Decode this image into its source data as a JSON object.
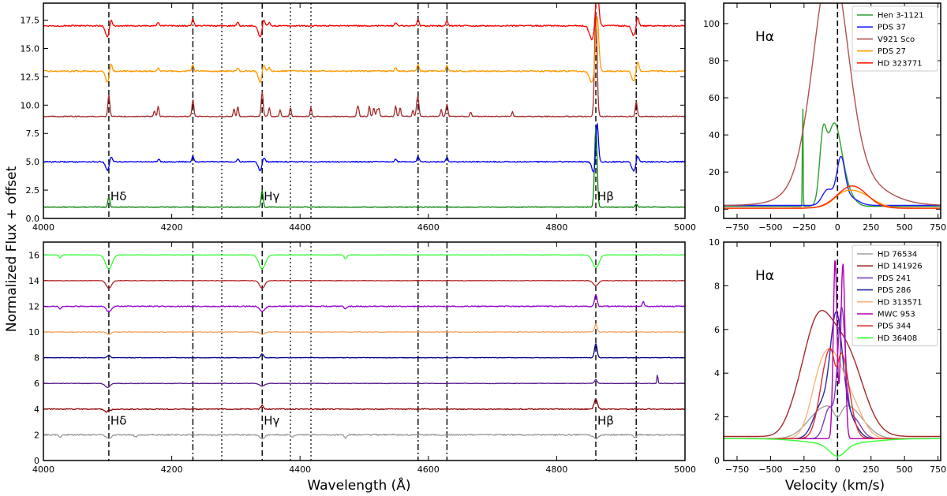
{
  "figure": {
    "ylabel": "Normalized Flux + offset",
    "xlabel_spec": "Wavelength (Å)",
    "xlabel_vel": "Velocity (km/s)"
  },
  "chart_data": [
    {
      "type": "line",
      "panel": "top-left",
      "xlim": [
        4000,
        5000
      ],
      "ylim": [
        0,
        19
      ],
      "xticks": [
        4000,
        4200,
        4400,
        4600,
        4800,
        5000
      ],
      "yticks": [
        "0.0",
        "2.5",
        "5.0",
        "7.5",
        "10.0",
        "12.5",
        "15.0",
        "17.5"
      ],
      "grid": false,
      "line_markers": {
        "dashed": [
          4102,
          4341,
          4861
        ],
        "dashdot": [
          4233,
          4584,
          4629,
          4924
        ],
        "dotted": [
          4278,
          4385,
          4417
        ]
      },
      "annotations": [
        {
          "text": "Hδ",
          "x": 4102,
          "y": 1.6
        },
        {
          "text": "Hγ",
          "x": 4341,
          "y": 1.6
        },
        {
          "text": "Hβ",
          "x": 4861,
          "y": 1.6
        }
      ],
      "series": [
        {
          "color": "#008000",
          "offset": 1,
          "noise": 0.03,
          "features": [
            [
              4102,
              0.9,
              1.5
            ],
            [
              4341,
              1.5,
              1.5
            ],
            [
              4861,
              7.0,
              2.0
            ],
            [
              4924,
              0.3,
              1.5
            ]
          ]
        },
        {
          "color": "#0000ff",
          "offset": 5,
          "noise": 0.05,
          "features": [
            [
              4100,
              -0.8,
              3
            ],
            [
              4105,
              0.6,
              2
            ],
            [
              4338,
              -0.8,
              3
            ],
            [
              4343,
              0.5,
              2
            ],
            [
              4858,
              -1.0,
              3
            ],
            [
              4863,
              3.6,
              2
            ],
            [
              4920,
              -0.8,
              3
            ],
            [
              4926,
              0.6,
              2
            ],
            [
              4233,
              0.5,
              1.5
            ],
            [
              4584,
              0.5,
              1.5
            ],
            [
              4629,
              0.4,
              1.5
            ],
            [
              4180,
              0.25,
              1.5
            ],
            [
              4303,
              0.25,
              1.5
            ],
            [
              4549,
              0.25,
              1.5
            ]
          ]
        },
        {
          "color": "#a52a2a",
          "offset": 9,
          "noise": 0.04,
          "features": [
            [
              4102,
              1.9,
              1.5
            ],
            [
              4341,
              2.2,
              1.5
            ],
            [
              4861,
              9.0,
              2.0
            ],
            [
              4924,
              1.3,
              1.5
            ],
            [
              4233,
              1.2,
              1.5
            ],
            [
              4584,
              1.5,
              1.5
            ],
            [
              4629,
              1.1,
              1.5
            ],
            [
              4179,
              0.9,
              1.2
            ],
            [
              4173,
              0.5,
              1.2
            ],
            [
              4297,
              0.7,
              1.2
            ],
            [
              4303,
              0.9,
              1.2
            ],
            [
              4352,
              0.8,
              1.2
            ],
            [
              4369,
              0.6,
              1.2
            ],
            [
              4385,
              0.8,
              1.2
            ],
            [
              4417,
              0.8,
              1.2
            ],
            [
              4489,
              0.6,
              1.2
            ],
            [
              4491,
              0.7,
              1.2
            ],
            [
              4508,
              0.9,
              1.2
            ],
            [
              4515,
              0.8,
              1.2
            ],
            [
              4520,
              0.6,
              1.2
            ],
            [
              4523,
              0.7,
              1.2
            ],
            [
              4549,
              0.9,
              1.2
            ],
            [
              4556,
              0.8,
              1.2
            ],
            [
              4576,
              0.6,
              1.2
            ],
            [
              4582,
              0.7,
              1.2
            ],
            [
              4620,
              0.6,
              1.2
            ],
            [
              4666,
              0.4,
              1.2
            ],
            [
              4731,
              0.4,
              1.2
            ],
            [
              4233,
              0.3,
              1.2
            ]
          ]
        },
        {
          "color": "#ff9900",
          "offset": 13,
          "noise": 0.06,
          "features": [
            [
              4100,
              -1.0,
              3
            ],
            [
              4105,
              0.8,
              2
            ],
            [
              4338,
              -1.0,
              3
            ],
            [
              4343,
              0.8,
              2
            ],
            [
              4855,
              -1.0,
              4
            ],
            [
              4863,
              5.0,
              2.5
            ],
            [
              4920,
              -0.9,
              3
            ],
            [
              4926,
              0.9,
              2
            ],
            [
              4233,
              0.6,
              1.5
            ],
            [
              4584,
              0.6,
              1.5
            ],
            [
              4629,
              0.5,
              1.5
            ],
            [
              4179,
              0.3,
              1.5
            ],
            [
              4303,
              0.3,
              1.5
            ],
            [
              4352,
              0.3,
              1.5
            ],
            [
              4549,
              0.3,
              1.5
            ]
          ]
        },
        {
          "color": "#ff0000",
          "offset": 17,
          "noise": 0.06,
          "features": [
            [
              4100,
              -1.0,
              3
            ],
            [
              4105,
              0.7,
              2
            ],
            [
              4338,
              -1.0,
              3
            ],
            [
              4343,
              0.7,
              2
            ],
            [
              4855,
              -1.2,
              4
            ],
            [
              4863,
              3.5,
              2.5
            ],
            [
              4920,
              -0.9,
              3
            ],
            [
              4926,
              0.9,
              2
            ],
            [
              4233,
              0.6,
              1.5
            ],
            [
              4584,
              0.6,
              1.5
            ],
            [
              4629,
              0.5,
              1.5
            ],
            [
              4179,
              0.3,
              1.5
            ],
            [
              4303,
              0.3,
              1.5
            ],
            [
              4352,
              0.3,
              1.5
            ],
            [
              4549,
              0.3,
              1.5
            ]
          ]
        }
      ]
    },
    {
      "type": "line",
      "panel": "top-right",
      "title": "Hα",
      "xlim": [
        -850,
        770
      ],
      "ylim": [
        -5,
        111
      ],
      "xticks": [
        -750,
        -500,
        -250,
        0,
        250,
        500,
        750
      ],
      "yticks": [
        0,
        20,
        40,
        60,
        80,
        100
      ],
      "grid": false,
      "legend": "top-right",
      "marker_x": 0,
      "series": [
        {
          "name": "Hen 3-1121",
          "color": "#2ca02c",
          "base": 1.5,
          "components": [
            [
              -30,
              40,
              52
            ],
            [
              -110,
              30,
              25
            ],
            [
              45,
              10,
              60
            ],
            [
              -260,
              60,
              2.5
            ]
          ]
        },
        {
          "name": "PDS 37",
          "color": "#1a1aff",
          "base": 2,
          "components": [
            [
              25,
              22,
              30
            ],
            [
              -75,
              8,
              40
            ],
            [
              70,
              5,
              70
            ]
          ]
        },
        {
          "name": "V921 Sco",
          "color": "#b05050",
          "base": 2,
          "components": [
            [
              -40,
              95,
              120
            ],
            [
              -120,
              20,
              130
            ],
            [
              20,
              20,
              250
            ]
          ]
        },
        {
          "name": "PDS 27",
          "color": "#ff9900",
          "base": 0.5,
          "components": [
            [
              130,
              9,
              120
            ],
            [
              30,
              2,
              60
            ]
          ]
        },
        {
          "name": "HD 323771",
          "color": "#ff2200",
          "base": 0.5,
          "components": [
            [
              110,
              12,
              110
            ]
          ]
        }
      ]
    },
    {
      "type": "line",
      "panel": "bottom-left",
      "xlim": [
        4000,
        5000
      ],
      "ylim": [
        0,
        17
      ],
      "xticks": [
        4000,
        4200,
        4400,
        4600,
        4800,
        5000
      ],
      "yticks": [
        0,
        2,
        4,
        6,
        8,
        10,
        12,
        14,
        16
      ],
      "grid": false,
      "line_markers": {
        "dashed": [
          4102,
          4341,
          4861
        ],
        "dashdot": [
          4233,
          4584,
          4629,
          4924
        ],
        "dotted": [
          4278,
          4385,
          4417
        ]
      },
      "annotations": [
        {
          "text": "Hδ",
          "x": 4102,
          "y": 2.8
        },
        {
          "text": "Hγ",
          "x": 4341,
          "y": 2.8
        },
        {
          "text": "Hβ",
          "x": 4861,
          "y": 2.8
        }
      ],
      "series": [
        {
          "color": "#999999",
          "offset": 2,
          "noise": 0.05,
          "features": [
            [
              4102,
              -0.3,
              4
            ],
            [
              4341,
              -0.3,
              4
            ],
            [
              4861,
              -0.3,
              4
            ],
            [
              4026,
              -0.2,
              2
            ],
            [
              4144,
              -0.15,
              2
            ],
            [
              4388,
              -0.2,
              2
            ],
            [
              4471,
              -0.25,
              2
            ],
            [
              4922,
              -0.2,
              2
            ]
          ]
        },
        {
          "color": "#8b0000",
          "offset": 4,
          "noise": 0.04,
          "features": [
            [
              4100,
              -0.3,
              4
            ],
            [
              4341,
              0.3,
              2
            ],
            [
              4861,
              0.8,
              2.5
            ],
            [
              4102,
              0.2,
              2
            ]
          ]
        },
        {
          "color": "#551a8b",
          "offset": 6,
          "noise": 0.02,
          "features": [
            [
              4100,
              -0.3,
              4
            ],
            [
              4341,
              -0.2,
              4
            ],
            [
              4861,
              0.3,
              2
            ],
            [
              4957,
              0.7,
              0.8
            ]
          ]
        },
        {
          "color": "#00008b",
          "offset": 8,
          "noise": 0.02,
          "features": [
            [
              4102,
              0.2,
              2
            ],
            [
              4341,
              0.3,
              2
            ],
            [
              4861,
              1.1,
              2
            ]
          ]
        },
        {
          "color": "#f4a460",
          "offset": 10,
          "noise": 0.03,
          "features": [
            [
              4102,
              -0.2,
              3
            ],
            [
              4341,
              -0.2,
              3
            ],
            [
              4861,
              0.6,
              2
            ]
          ]
        },
        {
          "color": "#9400d3",
          "offset": 12,
          "noise": 0.04,
          "features": [
            [
              4102,
              -0.4,
              4
            ],
            [
              4341,
              -0.4,
              4
            ],
            [
              4861,
              0.9,
              2
            ],
            [
              4935,
              0.4,
              1.2
            ],
            [
              4026,
              -0.2,
              2
            ],
            [
              4471,
              -0.2,
              2
            ]
          ]
        },
        {
          "color": "#b22222",
          "offset": 14,
          "noise": 0.02,
          "features": [
            [
              4102,
              -0.6,
              4
            ],
            [
              4341,
              -0.6,
              4
            ],
            [
              4861,
              -0.4,
              4
            ]
          ]
        },
        {
          "color": "#33ff33",
          "offset": 16,
          "noise": 0.02,
          "features": [
            [
              4102,
              -1.1,
              5
            ],
            [
              4341,
              -1.1,
              5
            ],
            [
              4861,
              -1.0,
              5
            ],
            [
              4026,
              -0.2,
              2
            ],
            [
              4471,
              -0.3,
              2
            ]
          ]
        }
      ]
    },
    {
      "type": "line",
      "panel": "bottom-right",
      "title": "Hα",
      "xlim": [
        -850,
        770
      ],
      "ylim": [
        0,
        10
      ],
      "xticks": [
        -750,
        -500,
        -250,
        0,
        250,
        500,
        750
      ],
      "yticks": [
        0,
        2,
        4,
        6,
        8,
        10
      ],
      "grid": false,
      "legend": "top-right",
      "marker_x": 0,
      "series": [
        {
          "name": "HD 76534",
          "color": "#a0a0a0",
          "base": 1.0,
          "components": [
            [
              -120,
              1.2,
              110
            ],
            [
              90,
              1.3,
              110
            ],
            [
              0,
              -0.6,
              30
            ]
          ]
        },
        {
          "name": "HD 141926",
          "color": "#a52a2a",
          "base": 1.1,
          "components": [
            [
              -160,
              4.6,
              110
            ],
            [
              60,
              3.8,
              130
            ],
            [
              -330,
              0.4,
              70
            ]
          ]
        },
        {
          "name": "PDS 241",
          "color": "#7b3fbf",
          "base": 1.0,
          "components": [
            [
              30,
              5.5,
              28
            ],
            [
              -60,
              1.4,
              40
            ],
            [
              110,
              1.0,
              60
            ]
          ]
        },
        {
          "name": "PDS 286",
          "color": "#2a2aa0",
          "base": 1.0,
          "components": [
            [
              -10,
              5.2,
              45
            ],
            [
              -120,
              1.5,
              60
            ],
            [
              80,
              1.0,
              60
            ]
          ]
        },
        {
          "name": "HD 313571",
          "color": "#ffb380",
          "base": 1.0,
          "components": [
            [
              -40,
              3.5,
              90
            ],
            [
              -150,
              1.4,
              70
            ],
            [
              120,
              1.2,
              80
            ]
          ]
        },
        {
          "name": "MWC 953",
          "color": "#b000b0",
          "base": 1.0,
          "components": [
            [
              -18,
              8.2,
              14
            ],
            [
              40,
              8.0,
              16
            ]
          ]
        },
        {
          "name": "PDS 344",
          "color": "#e03030",
          "base": 1.0,
          "components": [
            [
              -70,
              3.6,
              60
            ],
            [
              40,
              3.2,
              55
            ],
            [
              -10,
              -1.0,
              20
            ]
          ]
        },
        {
          "name": "HD 36408",
          "color": "#33ff33",
          "base": 1.0,
          "components": [
            [
              0,
              -0.55,
              60
            ],
            [
              0,
              -0.25,
              220
            ]
          ]
        }
      ]
    }
  ]
}
